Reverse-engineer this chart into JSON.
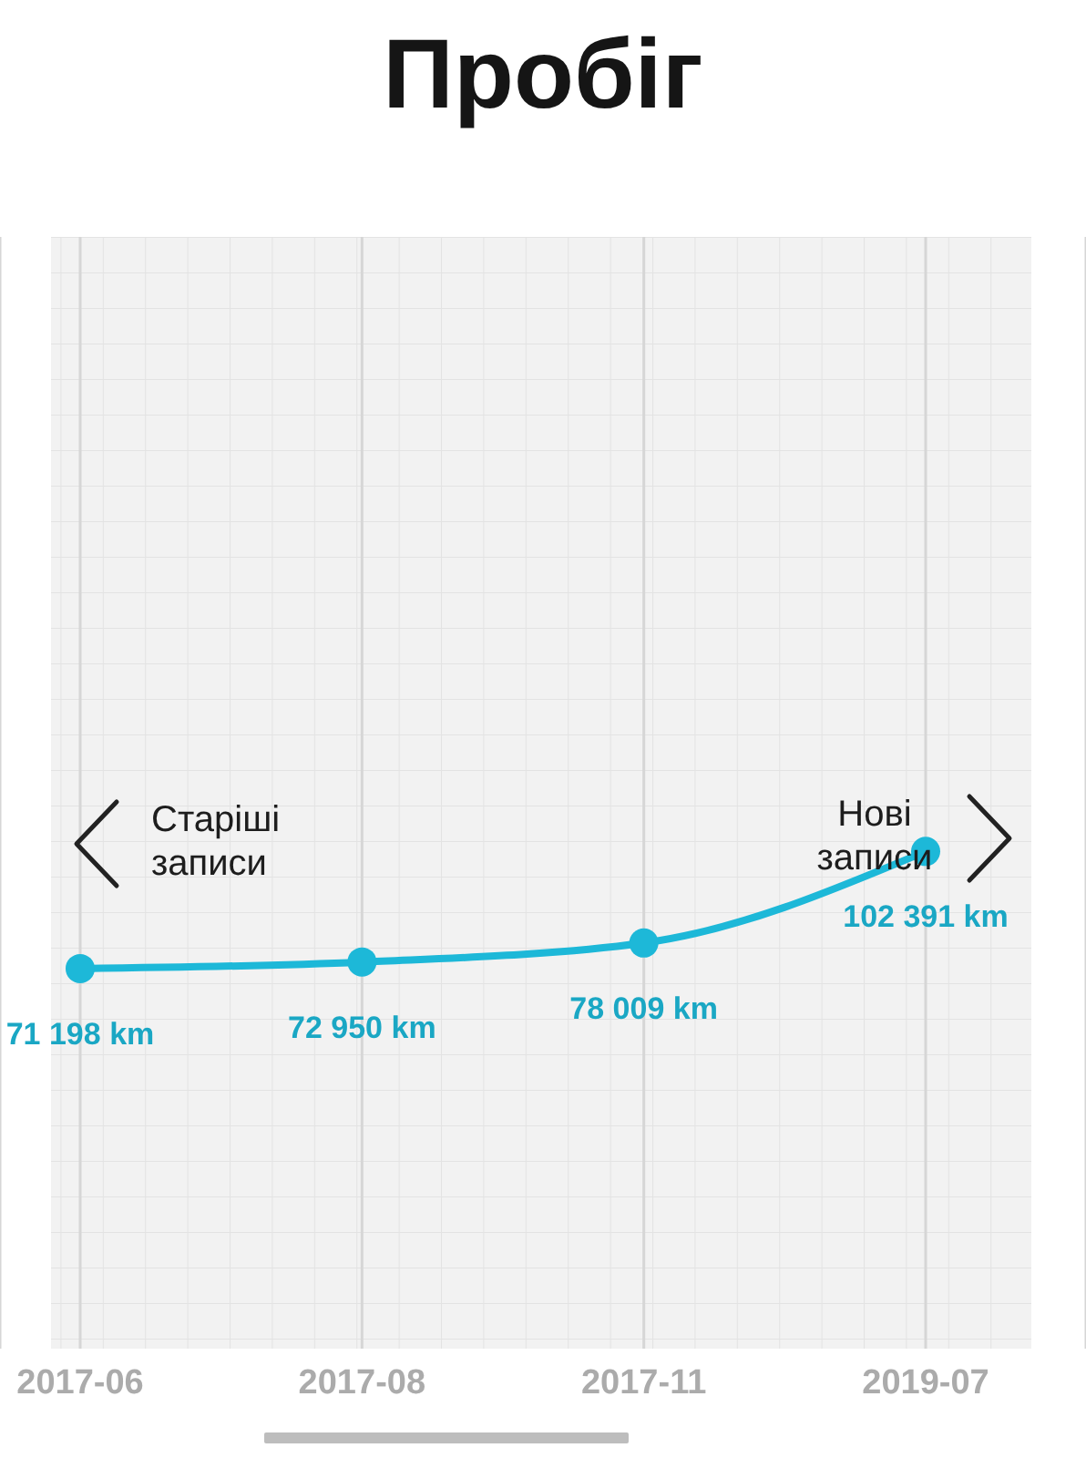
{
  "chart_data": {
    "type": "line",
    "title": "Пробіг",
    "categories": [
      "2017-06",
      "2017-08",
      "2017-11",
      "2019-07"
    ],
    "series": [
      {
        "color": "#1db8d8",
        "values": [
          71198,
          72950,
          78009,
          102391
        ],
        "value_labels": [
          "71 198 km",
          "72 950 km",
          "78 009 km",
          "102 391 km"
        ]
      }
    ],
    "ylim": [
      -30000,
      266000
    ],
    "tick_labels": "x",
    "grid": "x",
    "marker": "circle",
    "line_style": "solid",
    "annotations": [
      "Старіші записи",
      "Нові записи"
    ]
  }
}
